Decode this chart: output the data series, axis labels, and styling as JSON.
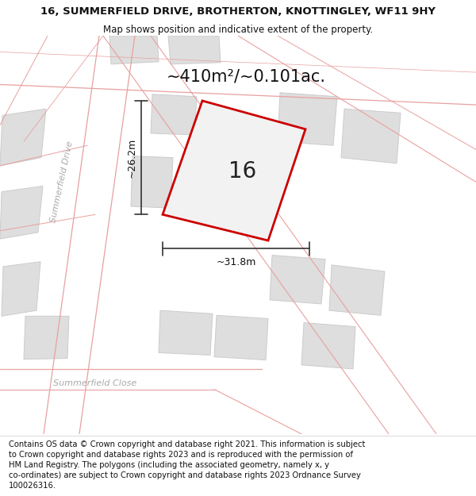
{
  "title": "16, SUMMERFIELD DRIVE, BROTHERTON, KNOTTINGLEY, WF11 9HY",
  "subtitle": "Map shows position and indicative extent of the property.",
  "footer": "Contains OS data © Crown copyright and database right 2021. This information is subject\nto Crown copyright and database rights 2023 and is reproduced with the permission of\nHM Land Registry. The polygons (including the associated geometry, namely x, y\nco-ordinates) are subject to Crown copyright and database rights 2023 Ordnance Survey\n100026316.",
  "area_text": "~410m²/~0.101ac.",
  "plot_number": "16",
  "dim_width": "~31.8m",
  "dim_height": "~26.2m",
  "title_fontsize": 9.5,
  "subtitle_fontsize": 8.5,
  "footer_fontsize": 7.2,
  "area_fontsize": 15,
  "plot_num_fontsize": 20,
  "dim_fontsize": 9,
  "street_fontsize": 8,
  "pink": "#e8a0a0",
  "gray_fill": "#dedede",
  "gray_edge": "#cccccc",
  "white": "#ffffff",
  "red": "#cc0000",
  "dark": "#333333",
  "street_color": "#aaaaaa"
}
